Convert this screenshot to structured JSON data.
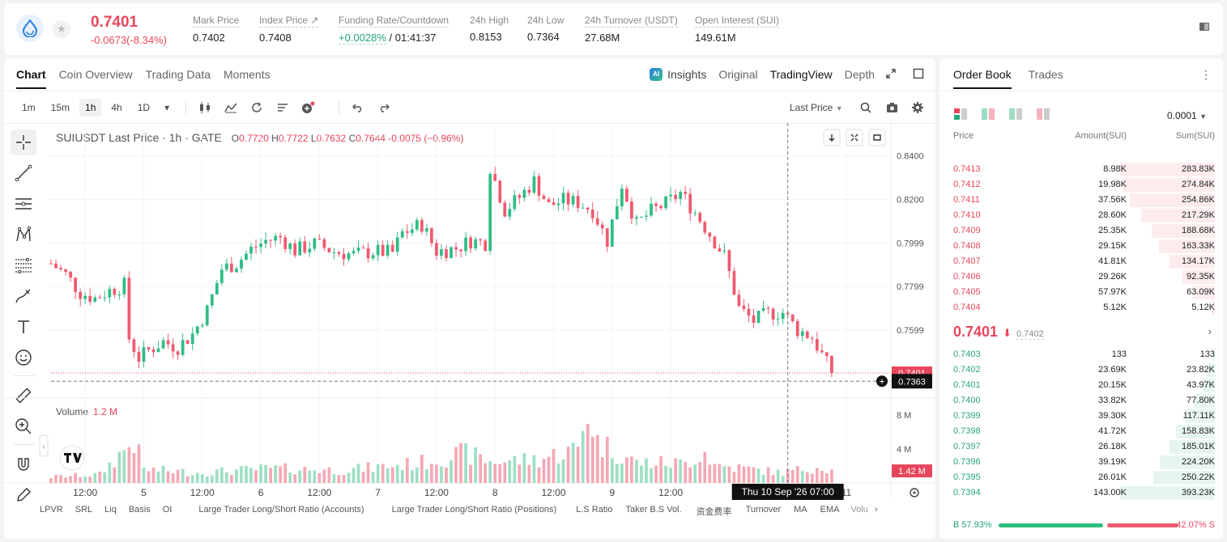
{
  "header": {
    "last_price": "0.7401",
    "change": "-0.0673(-8.34%)",
    "stats": [
      {
        "label": "Mark Price",
        "value": "0.7402"
      },
      {
        "label": "Index Price ↗",
        "value": "0.7408"
      },
      {
        "label": "Funding Rate/Countdown",
        "value_up": "+0.0028%",
        "value": " / 01:41:37"
      },
      {
        "label": "24h High",
        "value": "0.8153"
      },
      {
        "label": "24h Low",
        "value": "0.7364"
      },
      {
        "label": "24h Turnover (USDT)",
        "value": "27.68M"
      },
      {
        "label": "Open Interest (SUI)",
        "value": "149.61M"
      }
    ]
  },
  "chart_tabs": {
    "chart": "Chart",
    "coin_overview": "Coin Overview",
    "trading_data": "Trading Data",
    "moments": "Moments"
  },
  "view_tabs": {
    "insights": "Insights",
    "ai_badge": "AI",
    "original": "Original",
    "tradingview": "TradingView",
    "depth": "Depth"
  },
  "timeframes": [
    "1m",
    "15m",
    "1h",
    "4h",
    "1D"
  ],
  "active_timeframe": "1h",
  "last_price_select": "Last Price",
  "chart": {
    "symbol": "SUIUSDT Last Price · 1h · GATE",
    "o": "0.7720",
    "h": "0.7722",
    "l": "0.7632",
    "c": "0.7644",
    "chg": "-0.0075 (−0.96%)",
    "volume_label": "Volume",
    "volume_value": "1.2 M",
    "price_ticks": [
      "0.8400",
      "0.8200",
      "0.7999",
      "0.7799",
      "0.7599"
    ],
    "vol_ticks": [
      "8 M",
      "4 M"
    ],
    "price_label_last": "0.7401",
    "price_label_cross": "0.7363",
    "vol_label_last": "1.42 M",
    "time_ticks": [
      "12:00",
      "5",
      "12:00",
      "6",
      "12:00",
      "7",
      "12:00",
      "8",
      "12:00",
      "9",
      "12:00",
      "11"
    ],
    "crosshair_time": "Thu 10 Sep '26   07:00"
  },
  "chart_data": {
    "type": "candlestick",
    "title": "SUIUSDT Last Price · 1h · GATE",
    "ylim": [
      0.739,
      0.844
    ],
    "vol_ylim": [
      0,
      10
    ],
    "x_range_hours": [
      0,
      163
    ],
    "x_ticks": [
      {
        "label": "12:00",
        "h": 7
      },
      {
        "label": "5",
        "h": 19
      },
      {
        "label": "12:00",
        "h": 31
      },
      {
        "label": "6",
        "h": 43
      },
      {
        "label": "12:00",
        "h": 55
      },
      {
        "label": "7",
        "h": 67
      },
      {
        "label": "12:00",
        "h": 79
      },
      {
        "label": "8",
        "h": 91
      },
      {
        "label": "12:00",
        "h": 103
      },
      {
        "label": "9",
        "h": 115
      },
      {
        "label": "12:00",
        "h": 127
      },
      {
        "label": "11",
        "h": 163
      }
    ],
    "crosshair_h": 151,
    "crosshair_price": 0.7363,
    "anchors": [
      [
        0,
        0.7905
      ],
      [
        3,
        0.7855
      ],
      [
        6,
        0.777
      ],
      [
        9,
        0.7745
      ],
      [
        12,
        0.778
      ],
      [
        15,
        0.7805
      ],
      [
        16,
        0.756
      ],
      [
        18,
        0.747
      ],
      [
        20,
        0.7505
      ],
      [
        23,
        0.7545
      ],
      [
        26,
        0.752
      ],
      [
        29,
        0.758
      ],
      [
        32,
        0.769
      ],
      [
        35,
        0.788
      ],
      [
        38,
        0.7905
      ],
      [
        41,
        0.797
      ],
      [
        44,
        0.801
      ],
      [
        47,
        0.8025
      ],
      [
        50,
        0.7965
      ],
      [
        54,
        0.7995
      ],
      [
        58,
        0.796
      ],
      [
        62,
        0.7945
      ],
      [
        66,
        0.796
      ],
      [
        70,
        0.7955
      ],
      [
        72,
        0.8045
      ],
      [
        76,
        0.8085
      ],
      [
        79,
        0.796
      ],
      [
        83,
        0.7975
      ],
      [
        86,
        0.801
      ],
      [
        89,
        0.8
      ],
      [
        90,
        0.835
      ],
      [
        93,
        0.815
      ],
      [
        96,
        0.821
      ],
      [
        99,
        0.8285
      ],
      [
        102,
        0.817
      ],
      [
        105,
        0.8195
      ],
      [
        108,
        0.8185
      ],
      [
        111,
        0.815
      ],
      [
        114,
        0.801
      ],
      [
        117,
        0.827
      ],
      [
        120,
        0.8085
      ],
      [
        123,
        0.8145
      ],
      [
        126,
        0.818
      ],
      [
        129,
        0.823
      ],
      [
        132,
        0.814
      ],
      [
        135,
        0.804
      ],
      [
        138,
        0.794
      ],
      [
        141,
        0.77
      ],
      [
        144,
        0.764
      ],
      [
        147,
        0.7675
      ],
      [
        150,
        0.768
      ],
      [
        153,
        0.76
      ],
      [
        156,
        0.7565
      ],
      [
        159,
        0.7444
      ],
      [
        160,
        0.7401
      ]
    ],
    "volume_anchors": [
      [
        0,
        0.7
      ],
      [
        10,
        1.0
      ],
      [
        17,
        5.0
      ],
      [
        19,
        1.6
      ],
      [
        30,
        1.2
      ],
      [
        45,
        1.7
      ],
      [
        60,
        1.5
      ],
      [
        75,
        2.3
      ],
      [
        85,
        3.5
      ],
      [
        90,
        2.5
      ],
      [
        100,
        2.8
      ],
      [
        108,
        4.0
      ],
      [
        110,
        8.8
      ],
      [
        112,
        4.8
      ],
      [
        120,
        2.4
      ],
      [
        130,
        2.3
      ],
      [
        134,
        3.7
      ],
      [
        136,
        2.1
      ],
      [
        150,
        1.2
      ],
      [
        158,
        2.0
      ],
      [
        160,
        1.42
      ]
    ],
    "up_color": "#2fbd85",
    "down_color": "#ef5a6f"
  },
  "bottom_links": [
    "LPVR",
    "SRL",
    "Liq",
    "Basis",
    "OI",
    "Large Trader Long/Short Ratio (Accounts)",
    "Large Trader Long/Short Ratio (Positions)",
    "L.S Ratio",
    "Taker B.S Vol.",
    "资金费率",
    "Turnover",
    "MA",
    "EMA",
    "Volu"
  ],
  "orderbook": {
    "tabs": {
      "orderbook": "Order Book",
      "trades": "Trades"
    },
    "precision": "0.0001",
    "headers": {
      "price": "Price",
      "amount": "Amount(SUI)",
      "sum": "Sum(SUI)"
    },
    "asks": [
      {
        "price": "0.7413",
        "amount": "8.98K",
        "sum": "283.83K",
        "depth": 1.0
      },
      {
        "price": "0.7412",
        "amount": "19.98K",
        "sum": "274.84K",
        "depth": 0.97
      },
      {
        "price": "0.7411",
        "amount": "37.56K",
        "sum": "254.86K",
        "depth": 0.9
      },
      {
        "price": "0.7410",
        "amount": "28.60K",
        "sum": "217.29K",
        "depth": 0.77
      },
      {
        "price": "0.7409",
        "amount": "25.35K",
        "sum": "188.68K",
        "depth": 0.66
      },
      {
        "price": "0.7408",
        "amount": "29.15K",
        "sum": "163.33K",
        "depth": 0.58
      },
      {
        "price": "0.7407",
        "amount": "41.81K",
        "sum": "134.17K",
        "depth": 0.47
      },
      {
        "price": "0.7406",
        "amount": "29.26K",
        "sum": "92.35K",
        "depth": 0.33
      },
      {
        "price": "0.7405",
        "amount": "57.97K",
        "sum": "63.09K",
        "depth": 0.22
      },
      {
        "price": "0.7404",
        "amount": "5.12K",
        "sum": "5.12K",
        "depth": 0.02
      }
    ],
    "mid_price": "0.7401",
    "mid_arrow": "🡓",
    "index_price": "0.7402",
    "bids": [
      {
        "price": "0.7403",
        "amount": "133",
        "sum": "133",
        "depth": 0.01
      },
      {
        "price": "0.7402",
        "amount": "23.69K",
        "sum": "23.82K",
        "depth": 0.06
      },
      {
        "price": "0.7401",
        "amount": "20.15K",
        "sum": "43.97K",
        "depth": 0.11
      },
      {
        "price": "0.7400",
        "amount": "33.82K",
        "sum": "77.80K",
        "depth": 0.2
      },
      {
        "price": "0.7399",
        "amount": "39.30K",
        "sum": "117.11K",
        "depth": 0.3
      },
      {
        "price": "0.7398",
        "amount": "41.72K",
        "sum": "158.83K",
        "depth": 0.4
      },
      {
        "price": "0.7397",
        "amount": "26.18K",
        "sum": "185.01K",
        "depth": 0.47
      },
      {
        "price": "0.7396",
        "amount": "39.19K",
        "sum": "224.20K",
        "depth": 0.57
      },
      {
        "price": "0.7395",
        "amount": "26.01K",
        "sum": "250.22K",
        "depth": 0.64
      },
      {
        "price": "0.7394",
        "amount": "143.00K",
        "sum": "393.23K",
        "depth": 1.0
      }
    ],
    "buy_ratio": "B 57.93%",
    "sell_ratio": "42.07% S",
    "buy_fraction": 0.5793
  },
  "colors": {
    "up": "#27a579",
    "down": "#e8465c"
  }
}
